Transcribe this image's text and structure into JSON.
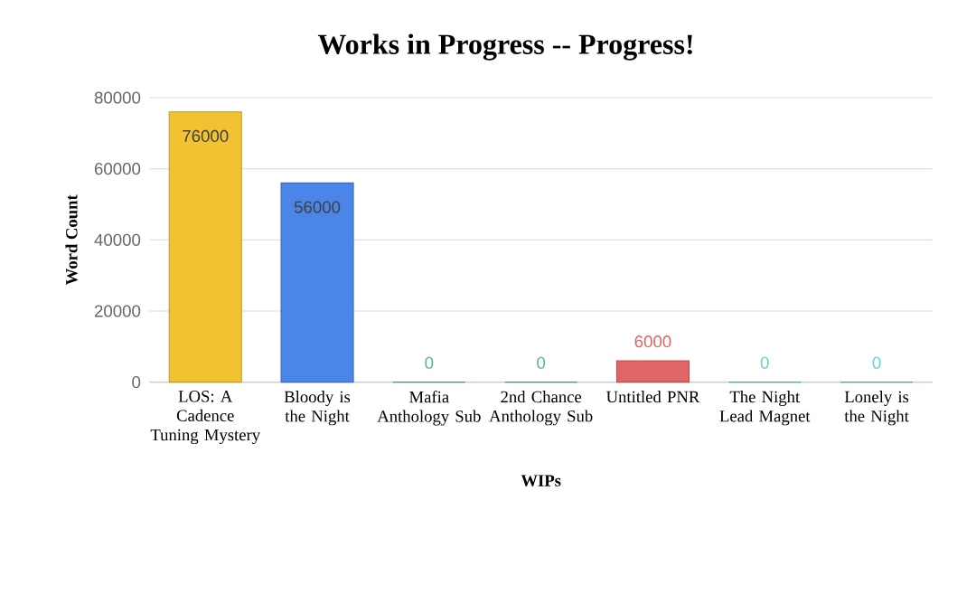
{
  "chart_data": {
    "type": "bar",
    "title": "Works in Progress -- Progress!",
    "xlabel": "WIPs",
    "ylabel": "Word Count",
    "categories": [
      "LOS: A Cadence Tuning Mystery",
      "Bloody is the Night",
      "Mafia Anthology Sub",
      "2nd Chance Anthology Sub",
      "Untitled PNR",
      "The Night Lead Magnet",
      "Lonely is the Night"
    ],
    "values": [
      76000,
      56000,
      0,
      0,
      6000,
      0,
      0
    ],
    "colors": [
      "#f1c232",
      "#4a86e8",
      "#57bb8a",
      "#57bb8a",
      "#e06666",
      "#67cfd0",
      "#67cfd0"
    ],
    "ylim": [
      0,
      80000
    ],
    "yticks": [
      0,
      20000,
      40000,
      60000,
      80000
    ],
    "grid": "y",
    "data_labels": true
  }
}
